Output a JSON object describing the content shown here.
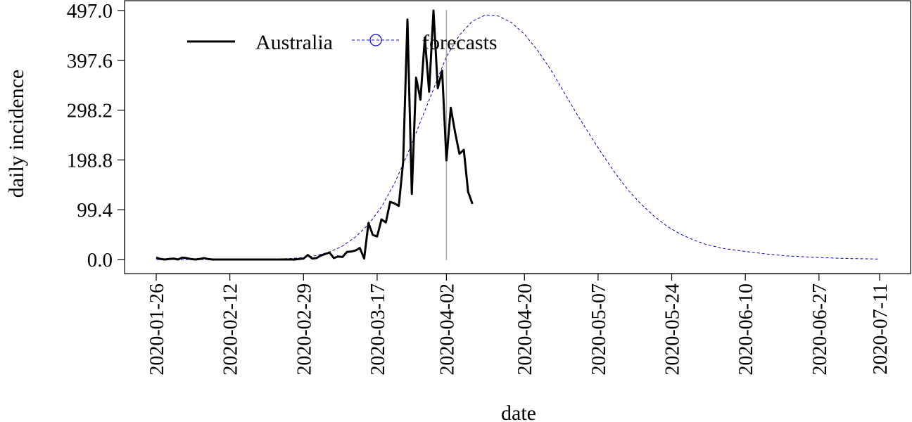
{
  "chart_data": {
    "type": "line",
    "xlabel": "date",
    "ylabel": "daily incidence",
    "x_tick_labels": [
      "2020-01-26",
      "2020-02-12",
      "2020-02-29",
      "2020-03-17",
      "2020-04-02",
      "2020-04-20",
      "2020-05-07",
      "2020-05-24",
      "2020-06-10",
      "2020-06-27",
      "2020-07-11"
    ],
    "y_tick_labels": [
      "0.0",
      "99.4",
      "198.8",
      "298.2",
      "397.6",
      "497.0"
    ],
    "ylim": [
      0,
      497.0
    ],
    "xlim": [
      "2020-01-26",
      "2020-07-11"
    ],
    "forecast_cutoff_date": "2020-04-02",
    "grid": false,
    "legend": {
      "position": "top-left",
      "entries": [
        "Australia",
        "forecasts"
      ]
    },
    "series": [
      {
        "name": "Australia",
        "color": "#000000",
        "style": "solid",
        "points": [
          [
            "2020-01-26",
            4
          ],
          [
            "2020-01-27",
            1
          ],
          [
            "2020-01-28",
            0
          ],
          [
            "2020-01-29",
            1
          ],
          [
            "2020-01-30",
            2
          ],
          [
            "2020-01-31",
            0
          ],
          [
            "2020-02-01",
            4
          ],
          [
            "2020-02-02",
            3
          ],
          [
            "2020-02-03",
            1
          ],
          [
            "2020-02-04",
            0
          ],
          [
            "2020-02-05",
            1
          ],
          [
            "2020-02-06",
            3
          ],
          [
            "2020-02-07",
            1
          ],
          [
            "2020-02-08",
            0
          ],
          [
            "2020-02-09",
            0
          ],
          [
            "2020-02-10",
            0
          ],
          [
            "2020-02-11",
            0
          ],
          [
            "2020-02-12",
            0
          ],
          [
            "2020-02-13",
            0
          ],
          [
            "2020-02-14",
            0
          ],
          [
            "2020-02-15",
            0
          ],
          [
            "2020-02-16",
            0
          ],
          [
            "2020-02-17",
            0
          ],
          [
            "2020-02-18",
            0
          ],
          [
            "2020-02-19",
            0
          ],
          [
            "2020-02-20",
            0
          ],
          [
            "2020-02-21",
            0
          ],
          [
            "2020-02-22",
            0
          ],
          [
            "2020-02-23",
            0
          ],
          [
            "2020-02-24",
            0
          ],
          [
            "2020-02-25",
            0
          ],
          [
            "2020-02-26",
            0
          ],
          [
            "2020-02-27",
            0
          ],
          [
            "2020-02-28",
            1
          ],
          [
            "2020-02-29",
            2
          ],
          [
            "2020-03-01",
            9
          ],
          [
            "2020-03-02",
            2
          ],
          [
            "2020-03-03",
            3
          ],
          [
            "2020-03-04",
            8
          ],
          [
            "2020-03-05",
            11
          ],
          [
            "2020-03-06",
            14
          ],
          [
            "2020-03-07",
            3
          ],
          [
            "2020-03-08",
            6
          ],
          [
            "2020-03-09",
            5
          ],
          [
            "2020-03-10",
            15
          ],
          [
            "2020-03-11",
            16
          ],
          [
            "2020-03-12",
            18
          ],
          [
            "2020-03-13",
            23
          ],
          [
            "2020-03-14",
            2
          ],
          [
            "2020-03-15",
            73
          ],
          [
            "2020-03-16",
            49
          ],
          [
            "2020-03-17",
            46
          ],
          [
            "2020-03-18",
            80
          ],
          [
            "2020-03-19",
            74
          ],
          [
            "2020-03-20",
            115
          ],
          [
            "2020-03-21",
            112
          ],
          [
            "2020-03-22",
            107
          ],
          [
            "2020-03-23",
            195
          ],
          [
            "2020-03-24",
            479
          ],
          [
            "2020-03-25",
            131
          ],
          [
            "2020-03-26",
            363
          ],
          [
            "2020-03-27",
            319
          ],
          [
            "2020-03-28",
            443
          ],
          [
            "2020-03-29",
            335
          ],
          [
            "2020-03-30",
            497
          ],
          [
            "2020-03-31",
            342
          ],
          [
            "2020-04-01",
            377
          ],
          [
            "2020-04-02",
            198
          ],
          [
            "2020-04-03",
            303
          ],
          [
            "2020-04-04",
            254
          ],
          [
            "2020-04-05",
            211
          ],
          [
            "2020-04-06",
            219
          ],
          [
            "2020-04-07",
            135
          ],
          [
            "2020-04-08",
            111
          ]
        ]
      },
      {
        "name": "forecasts",
        "color": "#0000cc",
        "style": "dashed",
        "marker": "open-circle",
        "points": [
          [
            "2020-01-26",
            0
          ],
          [
            "2020-02-12",
            0
          ],
          [
            "2020-02-22",
            1
          ],
          [
            "2020-02-26",
            2
          ],
          [
            "2020-02-29",
            4
          ],
          [
            "2020-03-03",
            8
          ],
          [
            "2020-03-06",
            15
          ],
          [
            "2020-03-09",
            27
          ],
          [
            "2020-03-12",
            45
          ],
          [
            "2020-03-15",
            70
          ],
          [
            "2020-03-18",
            105
          ],
          [
            "2020-03-21",
            152
          ],
          [
            "2020-03-24",
            210
          ],
          [
            "2020-03-27",
            275
          ],
          [
            "2020-03-30",
            340
          ],
          [
            "2020-04-02",
            405
          ],
          [
            "2020-04-05",
            448
          ],
          [
            "2020-04-08",
            476
          ],
          [
            "2020-04-11",
            488
          ],
          [
            "2020-04-14",
            486
          ],
          [
            "2020-04-17",
            473
          ],
          [
            "2020-04-20",
            450
          ],
          [
            "2020-04-23",
            418
          ],
          [
            "2020-04-26",
            380
          ],
          [
            "2020-04-29",
            336
          ],
          [
            "2020-05-02",
            292
          ],
          [
            "2020-05-05",
            250
          ],
          [
            "2020-05-08",
            210
          ],
          [
            "2020-05-11",
            172
          ],
          [
            "2020-05-14",
            138
          ],
          [
            "2020-05-17",
            110
          ],
          [
            "2020-05-20",
            86
          ],
          [
            "2020-05-23",
            66
          ],
          [
            "2020-05-26",
            51
          ],
          [
            "2020-05-29",
            39
          ],
          [
            "2020-06-01",
            30
          ],
          [
            "2020-06-05",
            22
          ],
          [
            "2020-06-10",
            16
          ],
          [
            "2020-06-15",
            11
          ],
          [
            "2020-06-20",
            7
          ],
          [
            "2020-06-27",
            4
          ],
          [
            "2020-07-04",
            2
          ],
          [
            "2020-07-11",
            1
          ]
        ]
      }
    ]
  }
}
